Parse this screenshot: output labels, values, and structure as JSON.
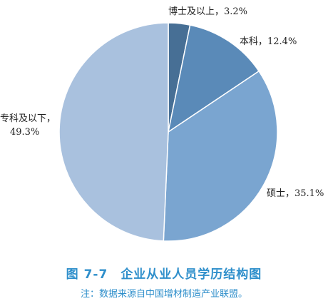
{
  "caption": {
    "figure_number": "图 7-7",
    "title": "企业从业人员学历结构图",
    "note": "注：数据来源自中国增材制造产业联盟。"
  },
  "chart_data": {
    "type": "pie",
    "start_angle_deg": 0,
    "direction": "clockwise",
    "slices": [
      {
        "label": "博士及以上",
        "value": 3.2,
        "display": "3.2%",
        "color": "#476f95"
      },
      {
        "label": "本科",
        "value": 12.4,
        "display": "12.4%",
        "color": "#5a8ab8"
      },
      {
        "label": "硕士",
        "value": 35.1,
        "display": "35.1%",
        "color": "#7aa5d0"
      },
      {
        "label": "专科及以下",
        "value": 49.3,
        "display": "49.3%",
        "color": "#a9c1de"
      }
    ],
    "label_separator": "，"
  }
}
